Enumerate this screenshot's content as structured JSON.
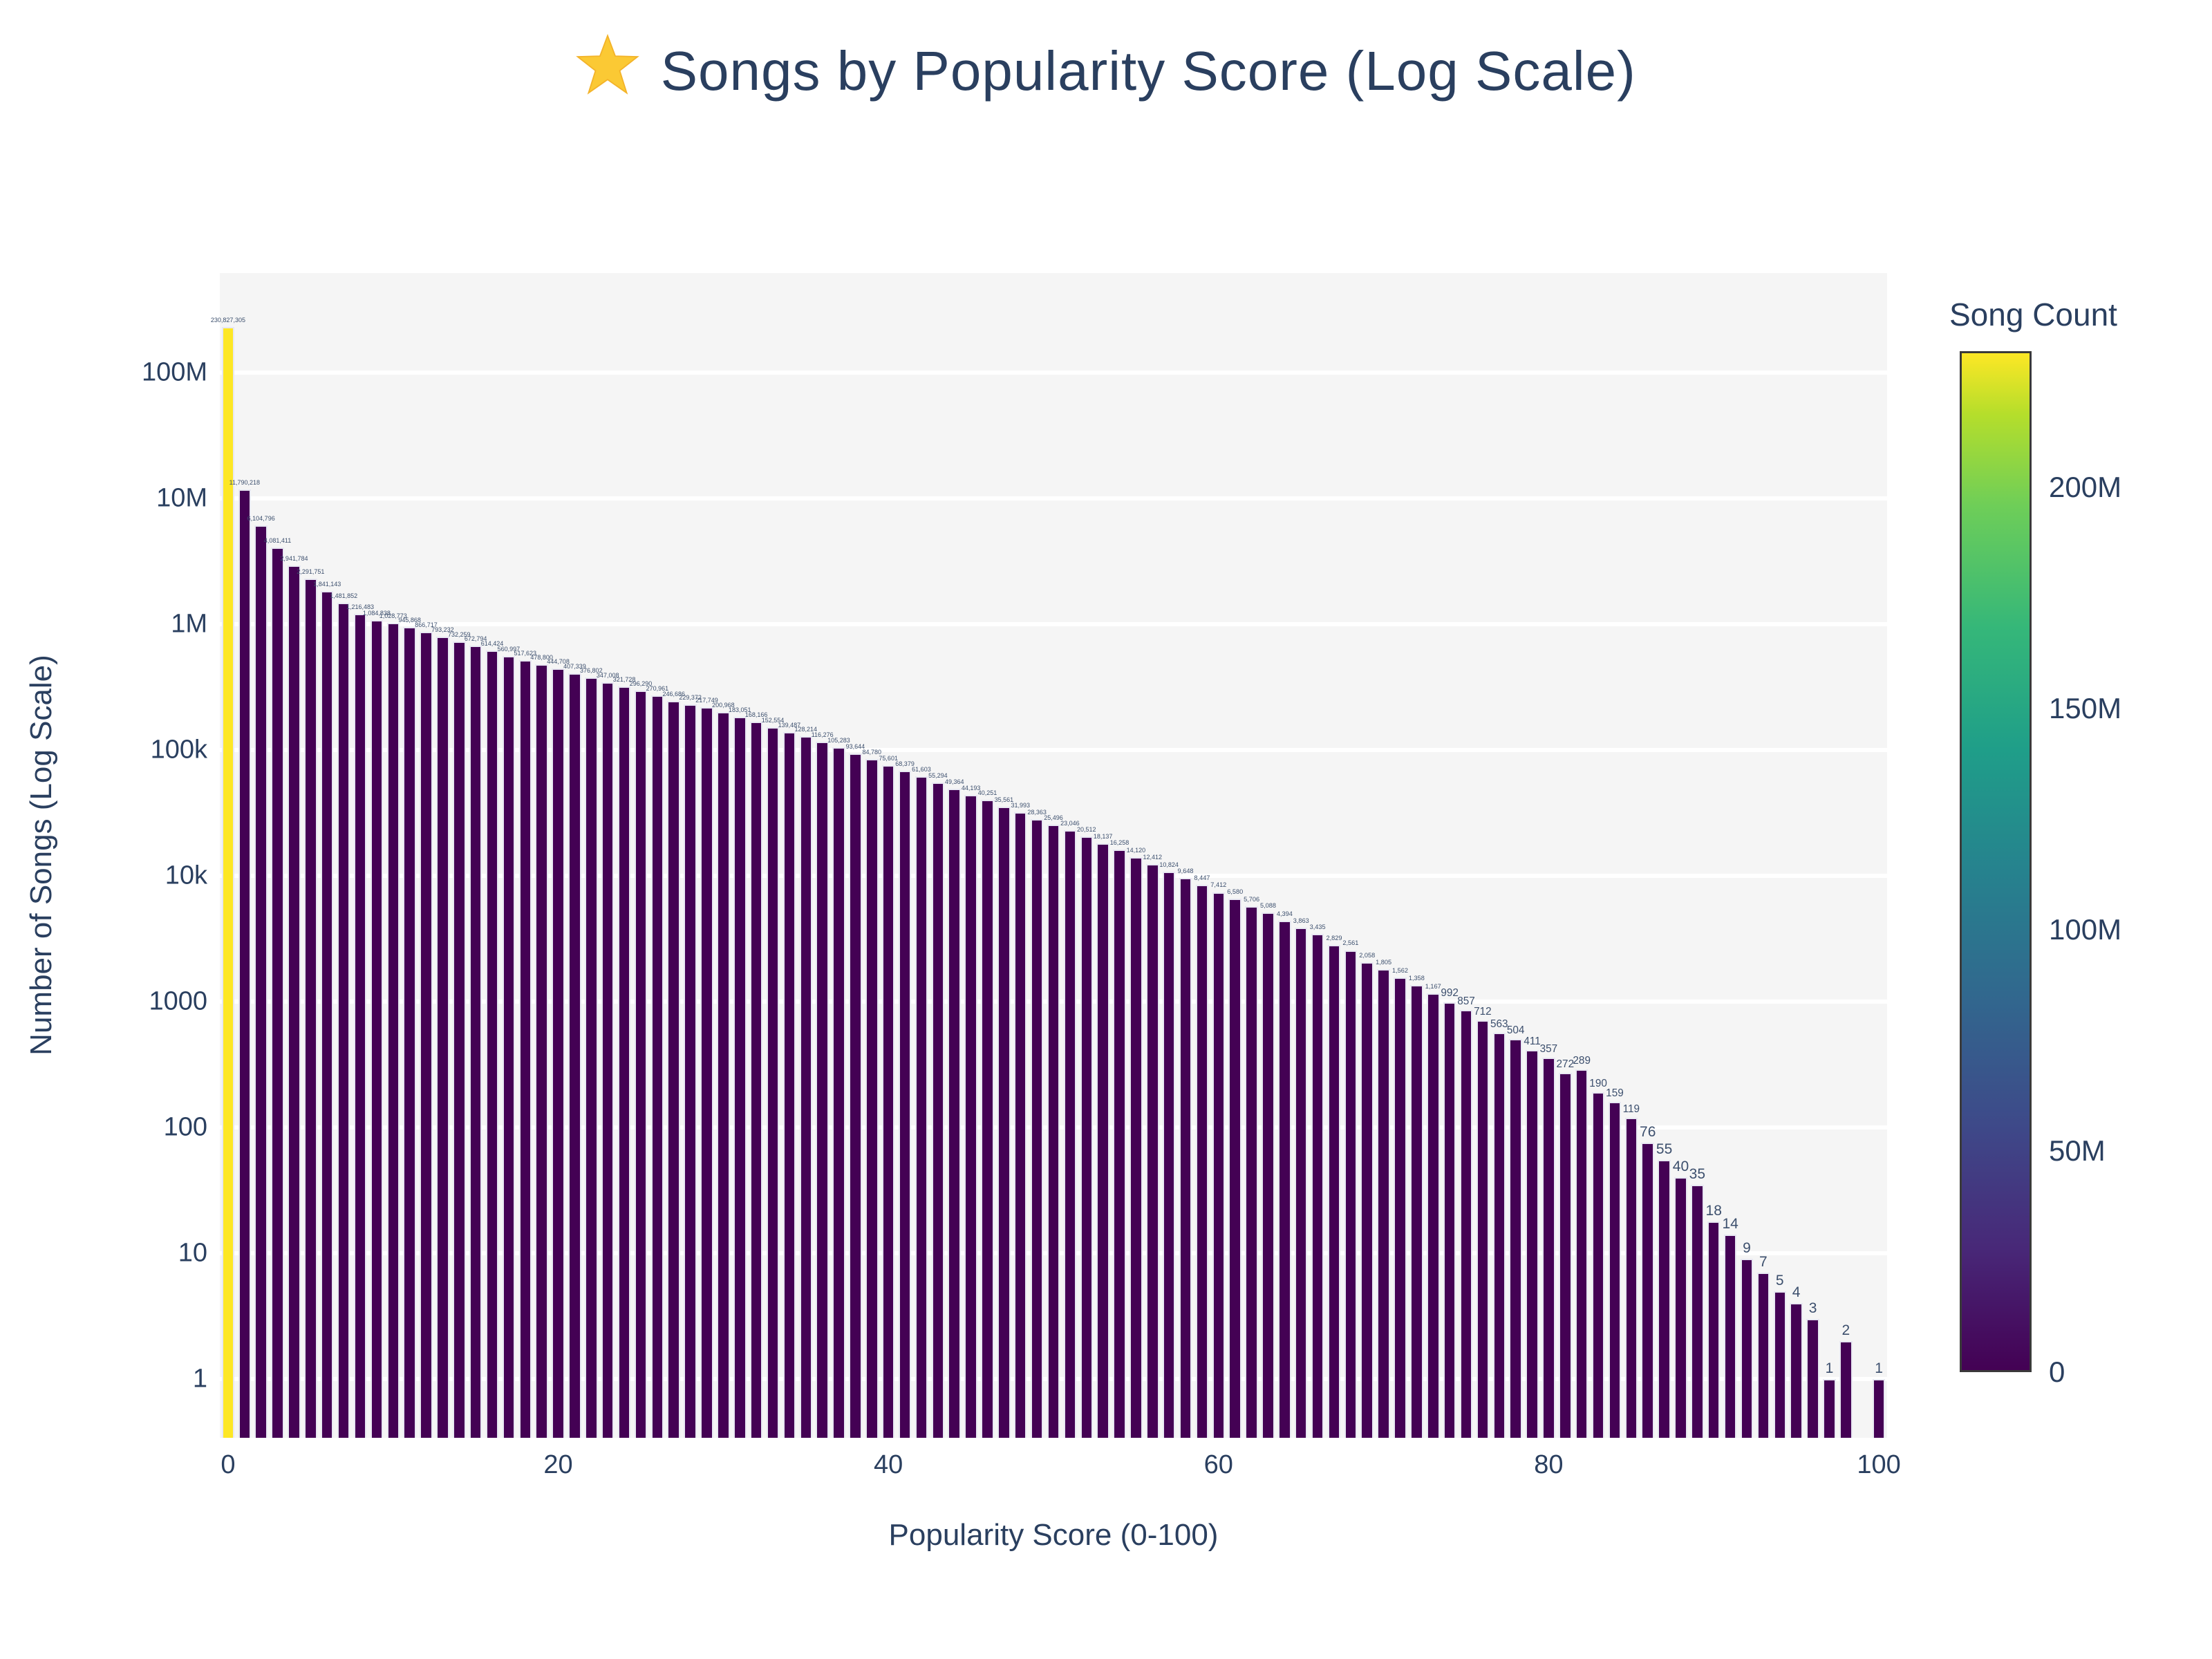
{
  "title": {
    "icon": "star",
    "text": "Songs by Popularity Score (Log Scale)"
  },
  "colors": {
    "plot_bg": "#f5f5f5",
    "grid": "#ffffff",
    "bar": "#440154",
    "bar_max": "#fde725",
    "bar_edge": "#e8e8f2",
    "text": "#2a3f5f",
    "bar_label": "#3c4f6d",
    "star": "#fbc934"
  },
  "chart_data": {
    "type": "bar",
    "title": "Songs by Popularity Score (Log Scale)",
    "xlabel": "Popularity Score (0-100)",
    "ylabel": "Number of Songs (Log Scale)",
    "yscale": "log",
    "grid": true,
    "x_min": 0,
    "x_max": 100,
    "xticks": [
      0,
      20,
      40,
      60,
      80,
      100
    ],
    "ytick_values": [
      1,
      10,
      100,
      1000,
      10000,
      100000,
      1000000,
      10000000,
      100000000
    ],
    "ytick_labels": [
      "1",
      "10",
      "100",
      "1000",
      "10k",
      "100k",
      "1M",
      "10M",
      "100M"
    ],
    "ylim_log": [
      0.34,
      8.8
    ],
    "values": [
      230827305,
      11790218,
      6104796,
      4081411,
      2941784,
      2291751,
      1841143,
      1481852,
      1216483,
      1084838,
      1028773,
      945868,
      866717,
      793232,
      732259,
      672794,
      614424,
      560997,
      517623,
      478800,
      444708,
      407339,
      376802,
      347008,
      321728,
      296290,
      270961,
      246686,
      229372,
      217749,
      200968,
      183051,
      168166,
      152554,
      139487,
      128214,
      116276,
      105283,
      93644,
      84780,
      75601,
      68379,
      61603,
      55294,
      49364,
      44193,
      40251,
      35561,
      31993,
      28363,
      25496,
      23046,
      20512,
      18137,
      16258,
      14120,
      12412,
      10824,
      9648,
      8447,
      7412,
      6580,
      5706,
      5088,
      4394,
      3863,
      3435,
      2829,
      2561,
      2058,
      1805,
      1562,
      1358,
      1167,
      992,
      857,
      712,
      563,
      504,
      411,
      357,
      272,
      289,
      190,
      159,
      119,
      76,
      55,
      40,
      35,
      18,
      14,
      9,
      7,
      5,
      4,
      3,
      1,
      2,
      0,
      1
    ],
    "colorbar": {
      "title": "Song Count",
      "tick_labels": [
        "0",
        "50M",
        "100M",
        "150M",
        "200M"
      ],
      "tick_values": [
        0,
        50000000,
        100000000,
        150000000,
        200000000
      ],
      "cmin": 0,
      "cmax": 230827305,
      "colorscale": "viridis"
    }
  }
}
